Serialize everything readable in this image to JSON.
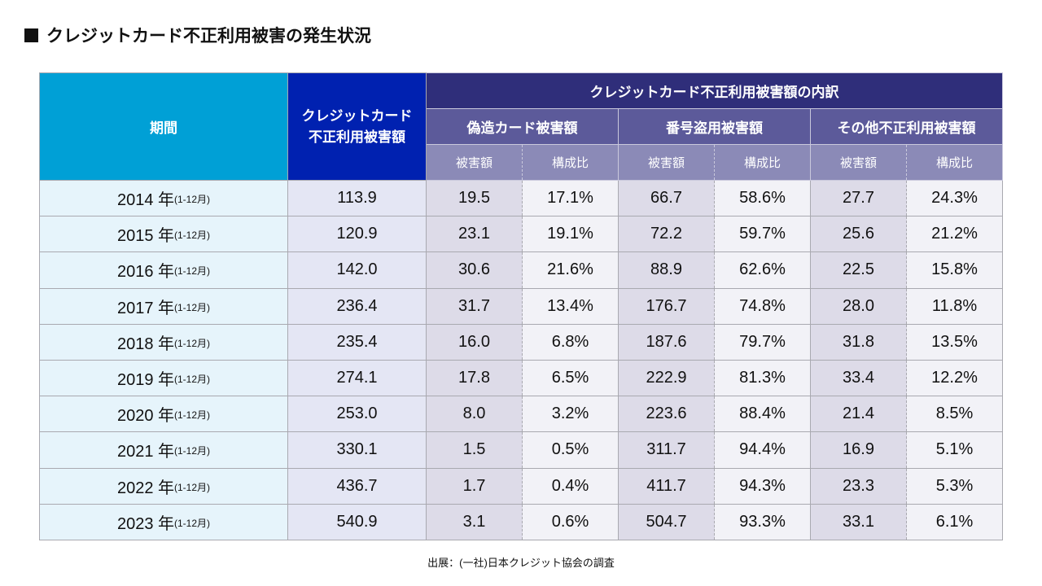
{
  "title": "クレジットカード不正利用被害の発生状況",
  "table": {
    "header": {
      "period": "期間",
      "total_line1": "クレジットカード",
      "total_line2": "不正利用被害額",
      "breakdown": "クレジットカード不正利用被害額の内訳",
      "groups": [
        "偽造カード被害額",
        "番号盗用被害額",
        "その他不正利用被害額"
      ],
      "amount": "被害額",
      "ratio": "構成比"
    },
    "rows": [
      {
        "year": "2014 年",
        "range": "(1-12月)",
        "total": "113.9",
        "c": [
          "19.5",
          "17.1%",
          "66.7",
          "58.6%",
          "27.7",
          "24.3%"
        ]
      },
      {
        "year": "2015 年",
        "range": "(1-12月)",
        "total": "120.9",
        "c": [
          "23.1",
          "19.1%",
          "72.2",
          "59.7%",
          "25.6",
          "21.2%"
        ]
      },
      {
        "year": "2016 年",
        "range": "(1-12月)",
        "total": "142.0",
        "c": [
          "30.6",
          "21.6%",
          "88.9",
          "62.6%",
          "22.5",
          "15.8%"
        ]
      },
      {
        "year": "2017 年",
        "range": "(1-12月)",
        "total": "236.4",
        "c": [
          "31.7",
          "13.4%",
          "176.7",
          "74.8%",
          "28.0",
          "11.8%"
        ]
      },
      {
        "year": "2018 年",
        "range": "(1-12月)",
        "total": "235.4",
        "c": [
          "16.0",
          "6.8%",
          "187.6",
          "79.7%",
          "31.8",
          "13.5%"
        ]
      },
      {
        "year": "2019 年",
        "range": "(1-12月)",
        "total": "274.1",
        "c": [
          "17.8",
          "6.5%",
          "222.9",
          "81.3%",
          "33.4",
          "12.2%"
        ]
      },
      {
        "year": "2020 年",
        "range": "(1-12月)",
        "total": "253.0",
        "c": [
          "8.0",
          "3.2%",
          "223.6",
          "88.4%",
          "21.4",
          "8.5%"
        ]
      },
      {
        "year": "2021 年",
        "range": "(1-12月)",
        "total": "330.1",
        "c": [
          "1.5",
          "0.5%",
          "311.7",
          "94.4%",
          "16.9",
          "5.1%"
        ]
      },
      {
        "year": "2022 年",
        "range": "(1-12月)",
        "total": "436.7",
        "c": [
          "1.7",
          "0.4%",
          "411.7",
          "94.3%",
          "23.3",
          "5.3%"
        ]
      },
      {
        "year": "2023 年",
        "range": "(1-12月)",
        "total": "540.9",
        "c": [
          "3.1",
          "0.6%",
          "504.7",
          "93.3%",
          "33.1",
          "6.1%"
        ]
      }
    ]
  },
  "source": "出展：(一社)日本クレジット協会の調査",
  "colors": {
    "period_header": "#00a0d6",
    "total_header": "#0021b0",
    "breakdown_header": "#2f2e7a",
    "group_header": "#5c5a9a",
    "sub_header": "#8b8ab7"
  }
}
